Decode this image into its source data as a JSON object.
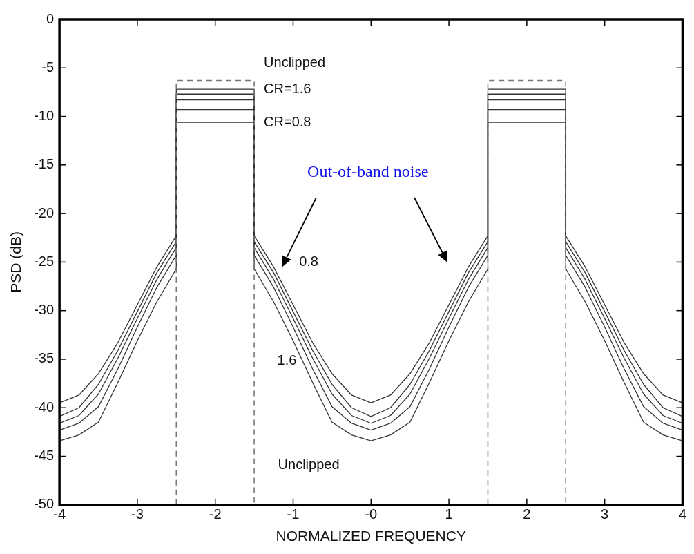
{
  "chart_data": {
    "type": "line",
    "xlabel": "NORMALIZED FREQUENCY",
    "ylabel": "PSD (dB)",
    "xlim": [
      -4,
      4
    ],
    "xticks": [
      -4,
      -3,
      -2,
      -1,
      {
        "value": 0,
        "label": "-0"
      },
      1,
      2,
      3,
      4
    ],
    "ylim": [
      -50,
      0
    ],
    "yticks": [
      -50,
      -45,
      -40,
      -35,
      -30,
      -25,
      -20,
      -15,
      -10,
      -5,
      0
    ],
    "grid": false,
    "legend": false,
    "marker": "none",
    "series": [
      {
        "name": "Unclipped",
        "color": "#777777",
        "line_style": "dashed",
        "x": [
          -2.5,
          -2.5,
          -1.5,
          -1.5,
          0,
          1.5,
          1.5,
          2.5,
          2.5
        ],
        "values": [
          -50,
          -6.3,
          -6.3,
          -50,
          null,
          -50,
          -6.3,
          -6.3,
          -50
        ]
      },
      {
        "name": "CR=1.6",
        "color": "#333333",
        "line_style": "solid",
        "x": [
          -4,
          -3.75,
          -3.5,
          -3.25,
          -3,
          -2.75,
          -2.5,
          -2.5,
          -1.5,
          -1.5,
          -1.25,
          -1,
          -0.75,
          -0.5,
          -0.25,
          0,
          0.25,
          0.5,
          0.75,
          1,
          1.25,
          1.5,
          1.5,
          2.5,
          2.5,
          2.75,
          3,
          3.25,
          3.5,
          3.75,
          4
        ],
        "values": [
          -43.4,
          -42.8,
          -41.5,
          -37.4,
          -33.1,
          -29.1,
          -25.7,
          -7.2,
          -7.2,
          -25.7,
          -29.1,
          -33.1,
          -37.4,
          -41.5,
          -42.8,
          -43.4,
          -42.8,
          -41.5,
          -37.4,
          -33.1,
          -29.1,
          -25.7,
          -7.2,
          -7.2,
          -25.7,
          -29.1,
          -33.1,
          -37.4,
          -41.5,
          -42.8,
          -43.4
        ]
      },
      {
        "color": "#333333",
        "line_style": "solid",
        "x": [
          -4,
          -3.75,
          -3.5,
          -3.25,
          -3,
          -2.75,
          -2.5,
          -2.5,
          -1.5,
          -1.5,
          -1.25,
          -1,
          -0.75,
          -0.5,
          -0.25,
          0,
          0.25,
          0.5,
          0.75,
          1,
          1.25,
          1.5,
          1.5,
          2.5,
          2.5,
          2.75,
          3,
          3.25,
          3.5,
          3.75,
          4
        ],
        "values": [
          -42.3,
          -41.6,
          -39.9,
          -36.0,
          -31.7,
          -27.6,
          -24.3,
          -7.7,
          -7.7,
          -24.3,
          -27.6,
          -31.7,
          -36.0,
          -39.9,
          -41.6,
          -42.3,
          -41.6,
          -39.9,
          -36.0,
          -31.7,
          -27.6,
          -24.3,
          -7.7,
          -7.7,
          -24.3,
          -27.6,
          -31.7,
          -36.0,
          -39.9,
          -41.6,
          -42.3
        ]
      },
      {
        "color": "#333333",
        "line_style": "solid",
        "x": [
          -4,
          -3.75,
          -3.5,
          -3.25,
          -3,
          -2.75,
          -2.5,
          -2.5,
          -1.5,
          -1.5,
          -1.25,
          -1,
          -0.75,
          -0.5,
          -0.25,
          0,
          0.25,
          0.5,
          0.75,
          1,
          1.25,
          1.5,
          1.5,
          2.5,
          2.5,
          2.75,
          3,
          3.25,
          3.5,
          3.75,
          4
        ],
        "values": [
          -41.6,
          -40.8,
          -38.6,
          -34.9,
          -30.8,
          -26.8,
          -23.5,
          -8.3,
          -8.3,
          -23.5,
          -26.8,
          -30.8,
          -34.9,
          -38.6,
          -40.8,
          -41.6,
          -40.8,
          -38.6,
          -34.9,
          -30.8,
          -26.8,
          -23.5,
          -8.3,
          -8.3,
          -23.5,
          -26.8,
          -30.8,
          -34.9,
          -38.6,
          -40.8,
          -41.6
        ]
      },
      {
        "color": "#333333",
        "line_style": "solid",
        "x": [
          -4,
          -3.75,
          -3.5,
          -3.25,
          -3,
          -2.75,
          -2.5,
          -2.5,
          -1.5,
          -1.5,
          -1.25,
          -1,
          -0.75,
          -0.5,
          -0.25,
          0,
          0.25,
          0.5,
          0.75,
          1,
          1.25,
          1.5,
          1.5,
          2.5,
          2.5,
          2.75,
          3,
          3.25,
          3.5,
          3.75,
          4
        ],
        "values": [
          -40.9,
          -40.0,
          -37.6,
          -34.1,
          -30.1,
          -26.1,
          -22.9,
          -9.3,
          -9.3,
          -22.9,
          -26.1,
          -30.1,
          -34.1,
          -37.6,
          -40.0,
          -40.9,
          -40.0,
          -37.6,
          -34.1,
          -30.1,
          -26.1,
          -22.9,
          -9.3,
          -9.3,
          -22.9,
          -26.1,
          -30.1,
          -34.1,
          -37.6,
          -40.0,
          -40.9
        ]
      },
      {
        "name": "CR=0.8",
        "color": "#333333",
        "line_style": "solid",
        "x": [
          -4,
          -3.75,
          -3.5,
          -3.25,
          -3,
          -2.75,
          -2.5,
          -2.5,
          -1.5,
          -1.5,
          -1.25,
          -1,
          -0.75,
          -0.5,
          -0.25,
          0,
          0.25,
          0.5,
          0.75,
          1,
          1.25,
          1.5,
          1.5,
          2.5,
          2.5,
          2.75,
          3,
          3.25,
          3.5,
          3.75,
          4
        ],
        "values": [
          -39.5,
          -38.7,
          -36.5,
          -33.3,
          -29.4,
          -25.5,
          -22.3,
          -10.6,
          -10.6,
          -22.3,
          -25.5,
          -29.4,
          -33.3,
          -36.5,
          -38.7,
          -39.5,
          -38.7,
          -36.5,
          -33.3,
          -29.4,
          -25.5,
          -22.3,
          -10.6,
          -10.6,
          -22.3,
          -25.5,
          -29.4,
          -33.3,
          -36.5,
          -38.7,
          -39.5
        ]
      }
    ],
    "annotations": [
      "Out-of-band noise",
      "0.8",
      "1.6",
      "Unclipped"
    ]
  }
}
